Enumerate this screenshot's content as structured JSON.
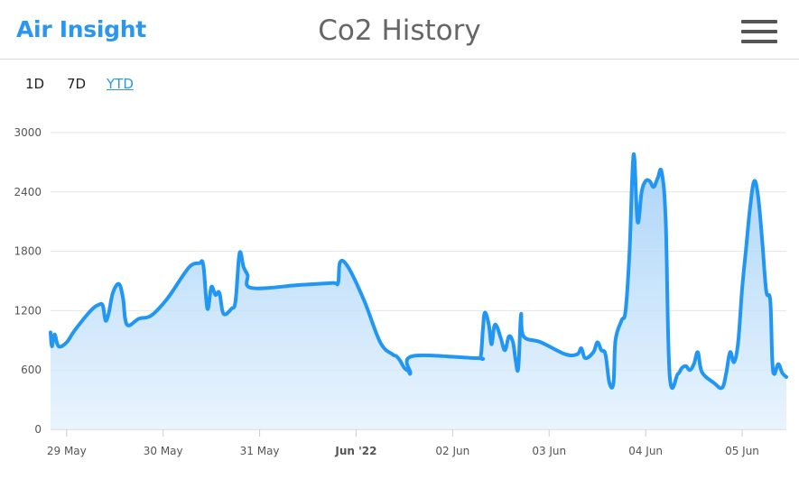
{
  "header": {
    "brand": "Air Insight",
    "title": "Co2 History",
    "menu_icon": "hamburger-menu-icon"
  },
  "ranges": [
    {
      "label": "1D",
      "active": false
    },
    {
      "label": "7D",
      "active": false
    },
    {
      "label": "YTD",
      "active": true
    }
  ],
  "colors": {
    "accent": "#2b96ef",
    "line": "#2196f3",
    "fill": "#cfe6fb"
  },
  "chart_data": {
    "type": "area",
    "title": "",
    "xlabel": "",
    "ylabel": "",
    "ylim": [
      0,
      3000
    ],
    "yticks": [
      0,
      600,
      1200,
      1800,
      2400,
      3000
    ],
    "xlim": [
      "2022-05-28 20:00",
      "2022-06-05 11:00"
    ],
    "xticks": [
      {
        "label": "29 May",
        "x": "2022-05-29",
        "bold": false
      },
      {
        "label": "30 May",
        "x": "2022-05-30",
        "bold": false
      },
      {
        "label": "31 May",
        "x": "2022-05-31",
        "bold": false
      },
      {
        "label": "Jun '22",
        "x": "2022-06-01",
        "bold": true
      },
      {
        "label": "02 Jun",
        "x": "2022-06-02",
        "bold": false
      },
      {
        "label": "03 Jun",
        "x": "2022-06-03",
        "bold": false
      },
      {
        "label": "04 Jun",
        "x": "2022-06-04",
        "bold": false
      },
      {
        "label": "05 Jun",
        "x": "2022-06-05",
        "bold": false
      }
    ],
    "grid": true,
    "series": [
      {
        "name": "",
        "points": [
          [
            "2022-05-28 20:00",
            980
          ],
          [
            "2022-05-28 20:20",
            840
          ],
          [
            "2022-05-28 21:00",
            960
          ],
          [
            "2022-05-28 22:00",
            840
          ],
          [
            "2022-05-29 00:00",
            880
          ],
          [
            "2022-05-29 02:00",
            1000
          ],
          [
            "2022-05-29 06:00",
            1200
          ],
          [
            "2022-05-29 08:00",
            1260
          ],
          [
            "2022-05-29 09:00",
            1250
          ],
          [
            "2022-05-29 09:40",
            1100
          ],
          [
            "2022-05-29 10:30",
            1180
          ],
          [
            "2022-05-29 11:30",
            1380
          ],
          [
            "2022-05-29 13:00",
            1470
          ],
          [
            "2022-05-29 14:00",
            1330
          ],
          [
            "2022-05-29 15:00",
            1060
          ],
          [
            "2022-05-29 18:00",
            1120
          ],
          [
            "2022-05-29 21:00",
            1150
          ],
          [
            "2022-05-30 01:00",
            1320
          ],
          [
            "2022-05-30 05:00",
            1560
          ],
          [
            "2022-05-30 07:00",
            1660
          ],
          [
            "2022-05-30 09:00",
            1680
          ],
          [
            "2022-05-30 10:00",
            1660
          ],
          [
            "2022-05-30 11:00",
            1220
          ],
          [
            "2022-05-30 12:00",
            1440
          ],
          [
            "2022-05-30 13:00",
            1360
          ],
          [
            "2022-05-30 14:00",
            1380
          ],
          [
            "2022-05-30 15:00",
            1170
          ],
          [
            "2022-05-30 17:00",
            1220
          ],
          [
            "2022-05-30 18:00",
            1300
          ],
          [
            "2022-05-30 19:00",
            1780
          ],
          [
            "2022-05-30 20:00",
            1640
          ],
          [
            "2022-05-30 21:00",
            1560
          ],
          [
            "2022-05-30 22:00",
            1430
          ],
          [
            "2022-05-31 10:00",
            1460
          ],
          [
            "2022-05-31 18:00",
            1480
          ],
          [
            "2022-05-31 19:30",
            1480
          ],
          [
            "2022-05-31 20:00",
            1690
          ],
          [
            "2022-05-31 22:00",
            1640
          ],
          [
            "2022-06-01 02:00",
            1300
          ],
          [
            "2022-06-01 06:00",
            880
          ],
          [
            "2022-06-01 09:00",
            760
          ],
          [
            "2022-06-01 10:00",
            740
          ],
          [
            "2022-06-01 11:00",
            690
          ],
          [
            "2022-06-01 12:00",
            620
          ],
          [
            "2022-06-01 13:00",
            590
          ],
          [
            "2022-06-01 13:30",
            570
          ],
          [
            "2022-06-01 14:00",
            740
          ],
          [
            "2022-06-02 06:00",
            720
          ],
          [
            "2022-06-02 07:00",
            740
          ],
          [
            "2022-06-02 07:30",
            1000
          ],
          [
            "2022-06-02 08:00",
            1180
          ],
          [
            "2022-06-02 09:00",
            1060
          ],
          [
            "2022-06-02 09:40",
            860
          ],
          [
            "2022-06-02 10:20",
            1040
          ],
          [
            "2022-06-02 11:00",
            1040
          ],
          [
            "2022-06-02 12:00",
            920
          ],
          [
            "2022-06-02 13:00",
            800
          ],
          [
            "2022-06-02 14:00",
            940
          ],
          [
            "2022-06-02 15:00",
            880
          ],
          [
            "2022-06-02 15:40",
            700
          ],
          [
            "2022-06-02 16:20",
            620
          ],
          [
            "2022-06-02 17:00",
            1160
          ],
          [
            "2022-06-02 17:40",
            940
          ],
          [
            "2022-06-02 22:00",
            880
          ],
          [
            "2022-06-03 04:00",
            760
          ],
          [
            "2022-06-03 07:00",
            760
          ],
          [
            "2022-06-03 08:00",
            820
          ],
          [
            "2022-06-03 09:00",
            720
          ],
          [
            "2022-06-03 11:00",
            780
          ],
          [
            "2022-06-03 12:00",
            880
          ],
          [
            "2022-06-03 13:00",
            800
          ],
          [
            "2022-06-03 14:00",
            760
          ],
          [
            "2022-06-03 15:00",
            470
          ],
          [
            "2022-06-03 16:00",
            470
          ],
          [
            "2022-06-03 16:30",
            900
          ],
          [
            "2022-06-03 18:00",
            1100
          ],
          [
            "2022-06-03 19:00",
            1200
          ],
          [
            "2022-06-03 20:00",
            1800
          ],
          [
            "2022-06-03 21:00",
            2780
          ],
          [
            "2022-06-03 22:00",
            2100
          ],
          [
            "2022-06-03 23:00",
            2400
          ],
          [
            "2022-06-04 00:00",
            2510
          ],
          [
            "2022-06-04 01:00",
            2510
          ],
          [
            "2022-06-04 02:00",
            2450
          ],
          [
            "2022-06-04 03:00",
            2540
          ],
          [
            "2022-06-04 04:00",
            2600
          ],
          [
            "2022-06-04 05:00",
            2100
          ],
          [
            "2022-06-04 06:00",
            540
          ],
          [
            "2022-06-04 08:00",
            560
          ],
          [
            "2022-06-04 09:00",
            620
          ],
          [
            "2022-06-04 10:00",
            640
          ],
          [
            "2022-06-04 11:00",
            600
          ],
          [
            "2022-06-04 12:00",
            660
          ],
          [
            "2022-06-04 13:00",
            780
          ],
          [
            "2022-06-04 14:00",
            580
          ],
          [
            "2022-06-04 17:00",
            470
          ],
          [
            "2022-06-04 19:00",
            420
          ],
          [
            "2022-06-04 20:00",
            560
          ],
          [
            "2022-06-04 21:00",
            780
          ],
          [
            "2022-06-04 22:00",
            680
          ],
          [
            "2022-06-04 23:00",
            880
          ],
          [
            "2022-06-05 00:00",
            1420
          ],
          [
            "2022-06-05 01:00",
            1840
          ],
          [
            "2022-06-05 02:00",
            2250
          ],
          [
            "2022-06-05 03:00",
            2510
          ],
          [
            "2022-06-05 04:00",
            2350
          ],
          [
            "2022-06-05 05:00",
            1900
          ],
          [
            "2022-06-05 06:00",
            1400
          ],
          [
            "2022-06-05 07:00",
            1300
          ],
          [
            "2022-06-05 07:30",
            700
          ],
          [
            "2022-06-05 08:00",
            560
          ],
          [
            "2022-06-05 09:00",
            660
          ],
          [
            "2022-06-05 10:00",
            570
          ],
          [
            "2022-06-05 11:00",
            530
          ]
        ]
      }
    ]
  }
}
